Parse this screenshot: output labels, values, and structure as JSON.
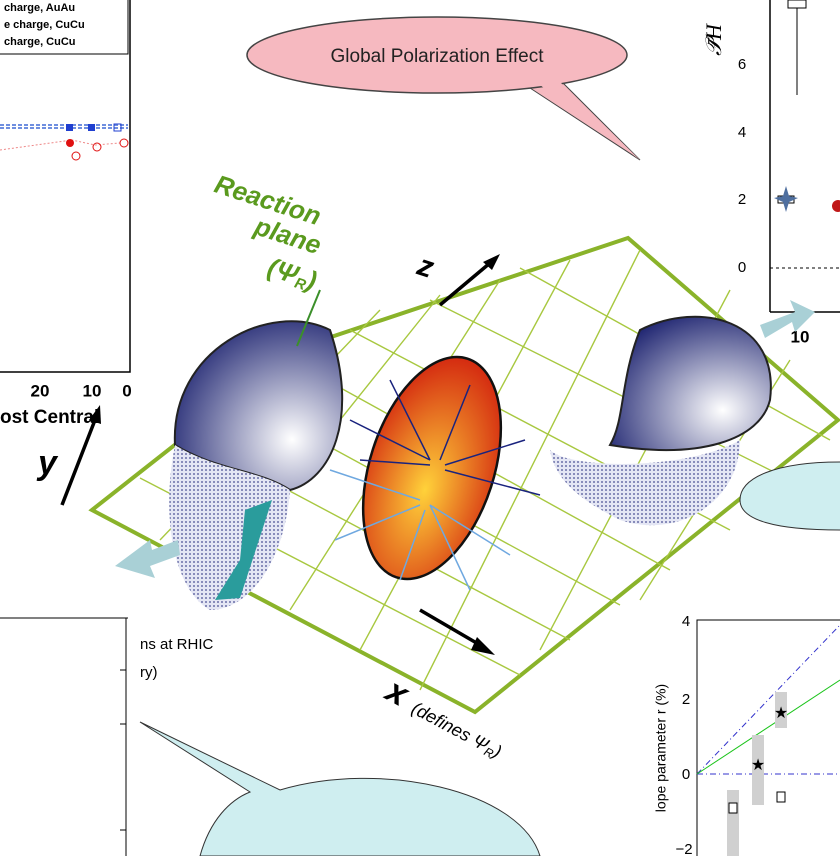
{
  "top_left_panel": {
    "legend": [
      "charge, AuAu",
      "e charge, CuCu",
      "charge, CuCu"
    ],
    "x_ticks": [
      "20",
      "10",
      "0"
    ],
    "x_label": "ost Central"
  },
  "callout": {
    "text": "Global Polarization Effect"
  },
  "top_right_panel": {
    "y_label": "𝒫̄H",
    "y_ticks": [
      "6",
      "4",
      "2",
      "0"
    ],
    "x_ticks": [
      "10"
    ]
  },
  "diagram": {
    "reaction_plane": [
      "Reaction",
      "plane"
    ],
    "psi": {
      "open": "(Ψ",
      "sub": "R",
      "close": ")"
    },
    "axes": {
      "z": "z",
      "y": "y",
      "x": "x"
    },
    "x_note": {
      "text": "(defines Ψ",
      "sub": "R",
      "close": ")"
    }
  },
  "bottom_left_panel": {
    "lines": [
      "ns at RHIC",
      "ry)"
    ]
  },
  "bottom_right_panel": {
    "y_label": "lope parameter r (%)",
    "y_ticks": [
      "4",
      "2",
      "0",
      "−2"
    ]
  }
}
